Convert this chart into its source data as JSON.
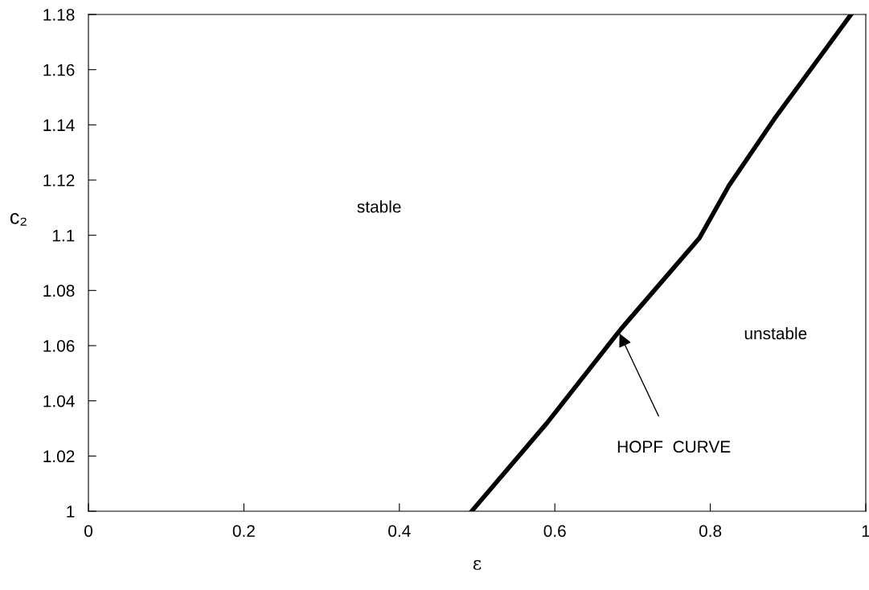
{
  "chart_data": {
    "type": "line",
    "xlabel": "ε",
    "ylabel": "c₂",
    "series": [
      {
        "color": "#000000",
        "x": [
          0.493,
          0.59,
          0.685,
          0.786,
          0.824,
          0.882,
          0.981
        ],
        "values": [
          1.0,
          1.032,
          1.066,
          1.099,
          1.118,
          1.142,
          1.18
        ]
      }
    ],
    "xlim": [
      0,
      1
    ],
    "ylim": [
      1,
      1.18
    ],
    "xticks": [
      0,
      0.2,
      0.4,
      0.6,
      0.8,
      1
    ],
    "yticks": [
      1,
      1.02,
      1.04,
      1.06,
      1.08,
      1.1,
      1.12,
      1.14,
      1.16,
      1.18
    ],
    "annotations": [
      "stable",
      "unstable",
      "HOPF  CURVE"
    ],
    "grid": false,
    "legend": false,
    "marker": "none",
    "line_style": "solid"
  }
}
